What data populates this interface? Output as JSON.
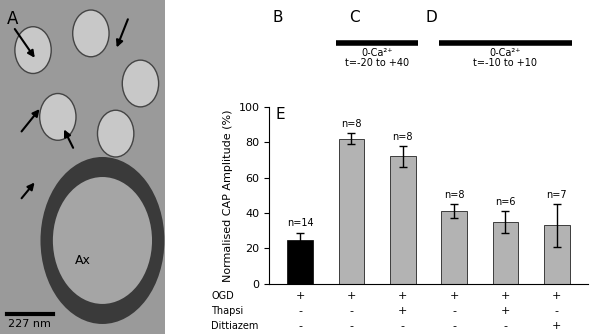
{
  "panels": {
    "A": {
      "label": "A",
      "texts": [
        "Ax"
      ],
      "scale_bar": "227 nm"
    },
    "B": {
      "label": "B"
    },
    "C": {
      "label": "C"
    },
    "D": {
      "label": "D"
    }
  },
  "chart_data": {
    "type": "bar",
    "label": "E",
    "categories": [
      null,
      null,
      null,
      null,
      null,
      null
    ],
    "values": [
      25,
      82,
      72,
      41,
      35,
      33
    ],
    "errors": [
      4,
      3,
      6,
      4,
      6,
      12
    ],
    "annotations": [
      "n=14",
      "n=8",
      "n=8",
      "n=8",
      "n=6",
      "n=7"
    ],
    "colors": [
      "#000000",
      "#b3b3b3",
      "#b3b3b3",
      "#b3b3b3",
      "#b3b3b3",
      "#b3b3b3"
    ],
    "y_label": "Normalised CAP Amplitude (%)",
    "ylim": [
      0,
      100
    ],
    "yticks": [
      0,
      20,
      40,
      60,
      80,
      100
    ],
    "tick_labels": "y",
    "conditions": [
      {
        "name": "OGD",
        "marks": [
          "+",
          "+",
          "+",
          "+",
          "+",
          "+"
        ]
      },
      {
        "name": "Thapsi",
        "marks": [
          "-",
          "-",
          "+",
          "-",
          "+",
          "-"
        ]
      },
      {
        "name": "Dittiazem",
        "marks": [
          "-",
          "-",
          "-",
          "-",
          "-",
          "+"
        ]
      }
    ],
    "groups": [
      {
        "label": "0-Ca²⁺\nt=-20 to +40",
        "first": 1,
        "last": 2
      },
      {
        "label": "0-Ca²⁺\nt=-10 to +10",
        "first": 3,
        "last": 5
      }
    ]
  }
}
